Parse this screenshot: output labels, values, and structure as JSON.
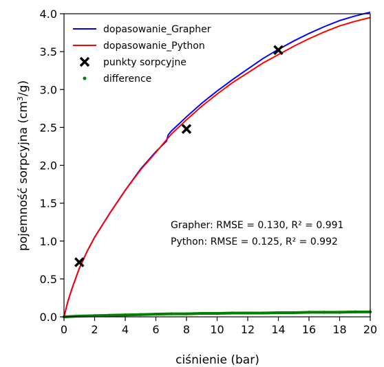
{
  "chart_data": {
    "type": "line",
    "xlabel": "ciśnienie (bar)",
    "ylabel_main": "pojemność sorpcyjna (cm",
    "ylabel_sup": "3",
    "ylabel_tail": "/g)",
    "xlim": [
      0,
      20
    ],
    "ylim": [
      0,
      4
    ],
    "x_ticks": [
      "0",
      "2",
      "4",
      "6",
      "8",
      "10",
      "12",
      "14",
      "16",
      "18",
      "20"
    ],
    "y_ticks": [
      "0.0",
      "0.5",
      "1.0",
      "1.5",
      "2.0",
      "2.5",
      "3.0",
      "3.5",
      "4.0"
    ],
    "grid": false,
    "legend_position": "top-left",
    "series": [
      {
        "name": "dopasowanie_Grapher",
        "style": "line",
        "color": "#0000ff",
        "x": [
          0,
          0.25,
          0.5,
          1,
          1.5,
          2,
          3,
          4,
          5,
          6,
          6.7,
          6.8,
          7,
          8,
          9,
          10,
          11,
          12,
          13,
          14,
          15,
          16,
          17,
          18,
          19,
          20
        ],
        "y": [
          0,
          0.2,
          0.36,
          0.64,
          0.86,
          1.05,
          1.37,
          1.67,
          1.95,
          2.18,
          2.32,
          2.4,
          2.45,
          2.64,
          2.82,
          2.98,
          3.13,
          3.27,
          3.41,
          3.53,
          3.64,
          3.74,
          3.83,
          3.91,
          3.97,
          4.02
        ]
      },
      {
        "name": "dopasowanie_Python",
        "style": "line",
        "color": "#ff0000",
        "x": [
          0,
          0.25,
          0.5,
          1,
          1.5,
          2,
          3,
          4,
          5,
          6,
          7,
          8,
          9,
          10,
          11,
          12,
          13,
          14,
          15,
          16,
          17,
          18,
          19,
          20
        ],
        "y": [
          0,
          0.2,
          0.36,
          0.64,
          0.86,
          1.05,
          1.37,
          1.67,
          1.94,
          2.17,
          2.41,
          2.6,
          2.78,
          2.94,
          3.09,
          3.22,
          3.35,
          3.46,
          3.57,
          3.67,
          3.76,
          3.84,
          3.9,
          3.95
        ]
      },
      {
        "name": "punkty sorpcyjne",
        "style": "marker",
        "color": "#000000",
        "x": [
          1,
          8,
          14
        ],
        "y": [
          0.72,
          2.48,
          3.52
        ]
      },
      {
        "name": "difference",
        "style": "points",
        "color": "#008000",
        "x": [
          0,
          1,
          2,
          3,
          4,
          5,
          6,
          7,
          8,
          9,
          10,
          11,
          12,
          13,
          14,
          15,
          16,
          17,
          18,
          19,
          20
        ],
        "y": [
          0.0,
          0.01,
          0.015,
          0.02,
          0.025,
          0.03,
          0.035,
          0.04,
          0.04,
          0.045,
          0.045,
          0.05,
          0.05,
          0.05,
          0.055,
          0.055,
          0.06,
          0.06,
          0.06,
          0.065,
          0.065
        ]
      }
    ],
    "annotations": [
      "Grapher: RMSE = 0.130, R² = 0.991",
      "Python: RMSE = 0.125, R² = 0.992"
    ]
  }
}
